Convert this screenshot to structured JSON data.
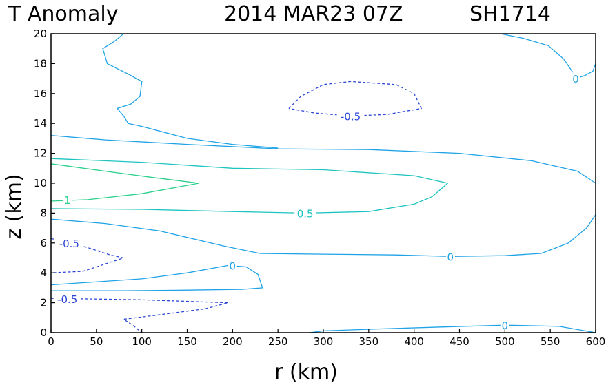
{
  "chart_data": {
    "type": "contour",
    "title": "T Anomaly",
    "datetime": "2014 MAR23 07Z",
    "storm_id": "SH1714",
    "xlabel": "r (km)",
    "ylabel": "z (km)",
    "xlim": [
      0,
      600
    ],
    "ylim": [
      0,
      20
    ],
    "xticks": [
      "0",
      "50",
      "100",
      "150",
      "200",
      "250",
      "300",
      "350",
      "400",
      "450",
      "500",
      "550",
      "600"
    ],
    "yticks": [
      "0",
      "2",
      "4",
      "6",
      "8",
      "10",
      "12",
      "14",
      "16",
      "18",
      "20"
    ],
    "grid": false,
    "colors": {
      "zero": "#1fa3e6",
      "pos_half": "#1ec4c0",
      "pos_one": "#2ad08c",
      "negative": "#2a46d6"
    },
    "contours": [
      {
        "level": 0,
        "label": "0",
        "label_at": [
          200,
          4.5
        ],
        "points": [
          [
            0,
            3.2
          ],
          [
            100,
            3.6
          ],
          [
            150,
            4.0
          ],
          [
            195,
            4.5
          ],
          [
            215,
            4.4
          ],
          [
            228,
            3.9
          ],
          [
            233,
            3.0
          ],
          [
            210,
            2.9
          ],
          [
            150,
            2.85
          ],
          [
            80,
            2.8
          ],
          [
            0,
            2.8
          ]
        ]
      },
      {
        "level": 0,
        "label": "0",
        "label_at": [
          440,
          5.1
        ],
        "points": [
          [
            0,
            7.6
          ],
          [
            60,
            7.3
          ],
          [
            120,
            6.8
          ],
          [
            190,
            5.8
          ],
          [
            230,
            5.3
          ],
          [
            300,
            5.25
          ],
          [
            380,
            5.2
          ],
          [
            440,
            5.1
          ],
          [
            500,
            5.15
          ],
          [
            540,
            5.3
          ],
          [
            570,
            6.0
          ],
          [
            590,
            7.0
          ],
          [
            600,
            7.9
          ]
        ]
      },
      {
        "level": 0,
        "label": "",
        "points": [
          [
            0,
            13.2
          ],
          [
            60,
            12.9
          ],
          [
            150,
            12.6
          ],
          [
            250,
            12.3
          ],
          [
            350,
            12.25
          ],
          [
            450,
            12.0
          ],
          [
            530,
            11.5
          ],
          [
            580,
            10.8
          ],
          [
            600,
            10.0
          ]
        ]
      },
      {
        "level": 0,
        "label": "",
        "points": [
          [
            80,
            20.0
          ],
          [
            70,
            19.5
          ],
          [
            57,
            19.0
          ],
          [
            62,
            18.0
          ],
          [
            85,
            17.3
          ],
          [
            100,
            16.8
          ],
          [
            98,
            15.8
          ],
          [
            88,
            15.3
          ],
          [
            73,
            15.0
          ],
          [
            80,
            14.5
          ],
          [
            85,
            14.0
          ],
          [
            100,
            13.8
          ],
          [
            150,
            13.0
          ],
          [
            200,
            12.6
          ],
          [
            250,
            12.35
          ]
        ]
      },
      {
        "level": 0,
        "label": "0",
        "label_at": [
          578,
          17.0
        ],
        "points": [
          [
            495,
            20.0
          ],
          [
            520,
            19.7
          ],
          [
            548,
            19.2
          ],
          [
            565,
            18.3
          ],
          [
            575,
            17.4
          ],
          [
            578,
            17.0
          ],
          [
            588,
            17.2
          ],
          [
            597,
            17.5
          ],
          [
            600,
            18.0
          ]
        ]
      },
      {
        "level": 0,
        "label": "0",
        "label_at": [
          500,
          0.5
        ],
        "points": [
          [
            285,
            0.0
          ],
          [
            300,
            0.12
          ],
          [
            360,
            0.25
          ],
          [
            430,
            0.38
          ],
          [
            500,
            0.5
          ],
          [
            560,
            0.42
          ],
          [
            600,
            0.0
          ]
        ]
      },
      {
        "level": 0.5,
        "label": "0.5",
        "label_at": [
          280,
          8.0
        ],
        "points": [
          [
            0,
            8.3
          ],
          [
            100,
            8.25
          ],
          [
            200,
            8.1
          ],
          [
            280,
            8.0
          ],
          [
            350,
            8.1
          ],
          [
            400,
            8.6
          ],
          [
            420,
            9.1
          ],
          [
            437,
            10.0
          ],
          [
            400,
            10.5
          ],
          [
            300,
            10.9
          ],
          [
            200,
            11.0
          ],
          [
            100,
            11.4
          ],
          [
            0,
            11.65
          ]
        ]
      },
      {
        "level": 1,
        "label": "1",
        "label_at": [
          18,
          8.9
        ],
        "points": [
          [
            0,
            8.8
          ],
          [
            40,
            8.9
          ],
          [
            100,
            9.3
          ],
          [
            163,
            10.0
          ],
          [
            110,
            10.4
          ],
          [
            60,
            10.8
          ],
          [
            0,
            11.3
          ]
        ]
      },
      {
        "level": -0.5,
        "label": "-0.5",
        "label_at": [
          330,
          14.5
        ],
        "points": [
          [
            262,
            15.0
          ],
          [
            275,
            15.8
          ],
          [
            300,
            16.6
          ],
          [
            330,
            16.8
          ],
          [
            380,
            16.6
          ],
          [
            400,
            16.0
          ],
          [
            408,
            15.0
          ],
          [
            370,
            14.6
          ],
          [
            330,
            14.5
          ],
          [
            290,
            14.7
          ],
          [
            262,
            15.0
          ]
        ]
      },
      {
        "level": -0.5,
        "label": "-0.5",
        "label_at": [
          20,
          6.0
        ],
        "points": [
          [
            0,
            6.3
          ],
          [
            40,
            5.7
          ],
          [
            65,
            5.2
          ],
          [
            80,
            5.0
          ],
          [
            60,
            4.6
          ],
          [
            35,
            4.1
          ],
          [
            0,
            4.0
          ]
        ]
      },
      {
        "level": -0.5,
        "label": "-0.5",
        "label_at": [
          18,
          2.25
        ],
        "points": [
          [
            0,
            2.3
          ],
          [
            100,
            2.2
          ],
          [
            195,
            2.0
          ],
          [
            170,
            1.6
          ],
          [
            120,
            1.2
          ],
          [
            80,
            0.9
          ],
          [
            90,
            0.5
          ],
          [
            100,
            0.0
          ]
        ]
      }
    ]
  }
}
